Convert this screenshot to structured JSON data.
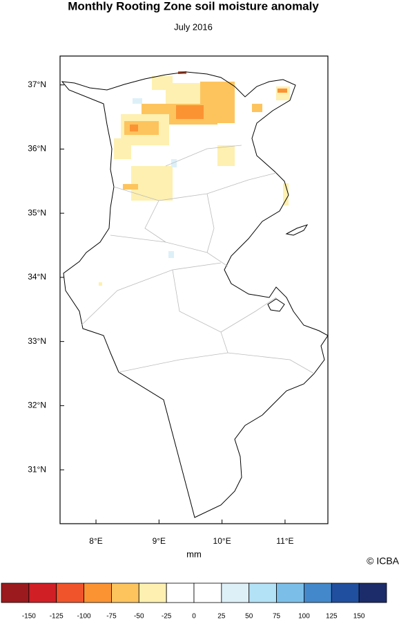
{
  "chart_data": {
    "type": "map",
    "title": "Monthly Rooting Zone soil moisture anomaly",
    "subtitle": "July 2016",
    "xlabel": "mm",
    "credit": "© ICBA",
    "xlim": [
      7.43,
      11.68
    ],
    "ylim": [
      30.16,
      37.45
    ],
    "xticks": [
      {
        "value": 8,
        "label": "8°E"
      },
      {
        "value": 9,
        "label": "9°E"
      },
      {
        "value": 10,
        "label": "10°E"
      },
      {
        "value": 11,
        "label": "11°E"
      }
    ],
    "yticks": [
      {
        "value": 31,
        "label": "31°N"
      },
      {
        "value": 32,
        "label": "32°N"
      },
      {
        "value": 33,
        "label": "33°N"
      },
      {
        "value": 34,
        "label": "34°N"
      },
      {
        "value": 35,
        "label": "35°N"
      },
      {
        "value": 36,
        "label": "36°N"
      },
      {
        "value": 37,
        "label": "37°N"
      }
    ],
    "colorbar": {
      "colors": [
        "#9b1a1d",
        "#d11f26",
        "#f0542b",
        "#fb9333",
        "#fdc45e",
        "#fef0b0",
        "#ffffff",
        "#ffffff",
        "#ddf0f8",
        "#b3e1f6",
        "#7bbfe8",
        "#4388ca",
        "#214f9f",
        "#1c2c6a"
      ],
      "ticks": [
        -150,
        -125,
        -100,
        -75,
        -50,
        -25,
        0,
        25,
        50,
        75,
        100,
        125,
        150
      ]
    }
  }
}
